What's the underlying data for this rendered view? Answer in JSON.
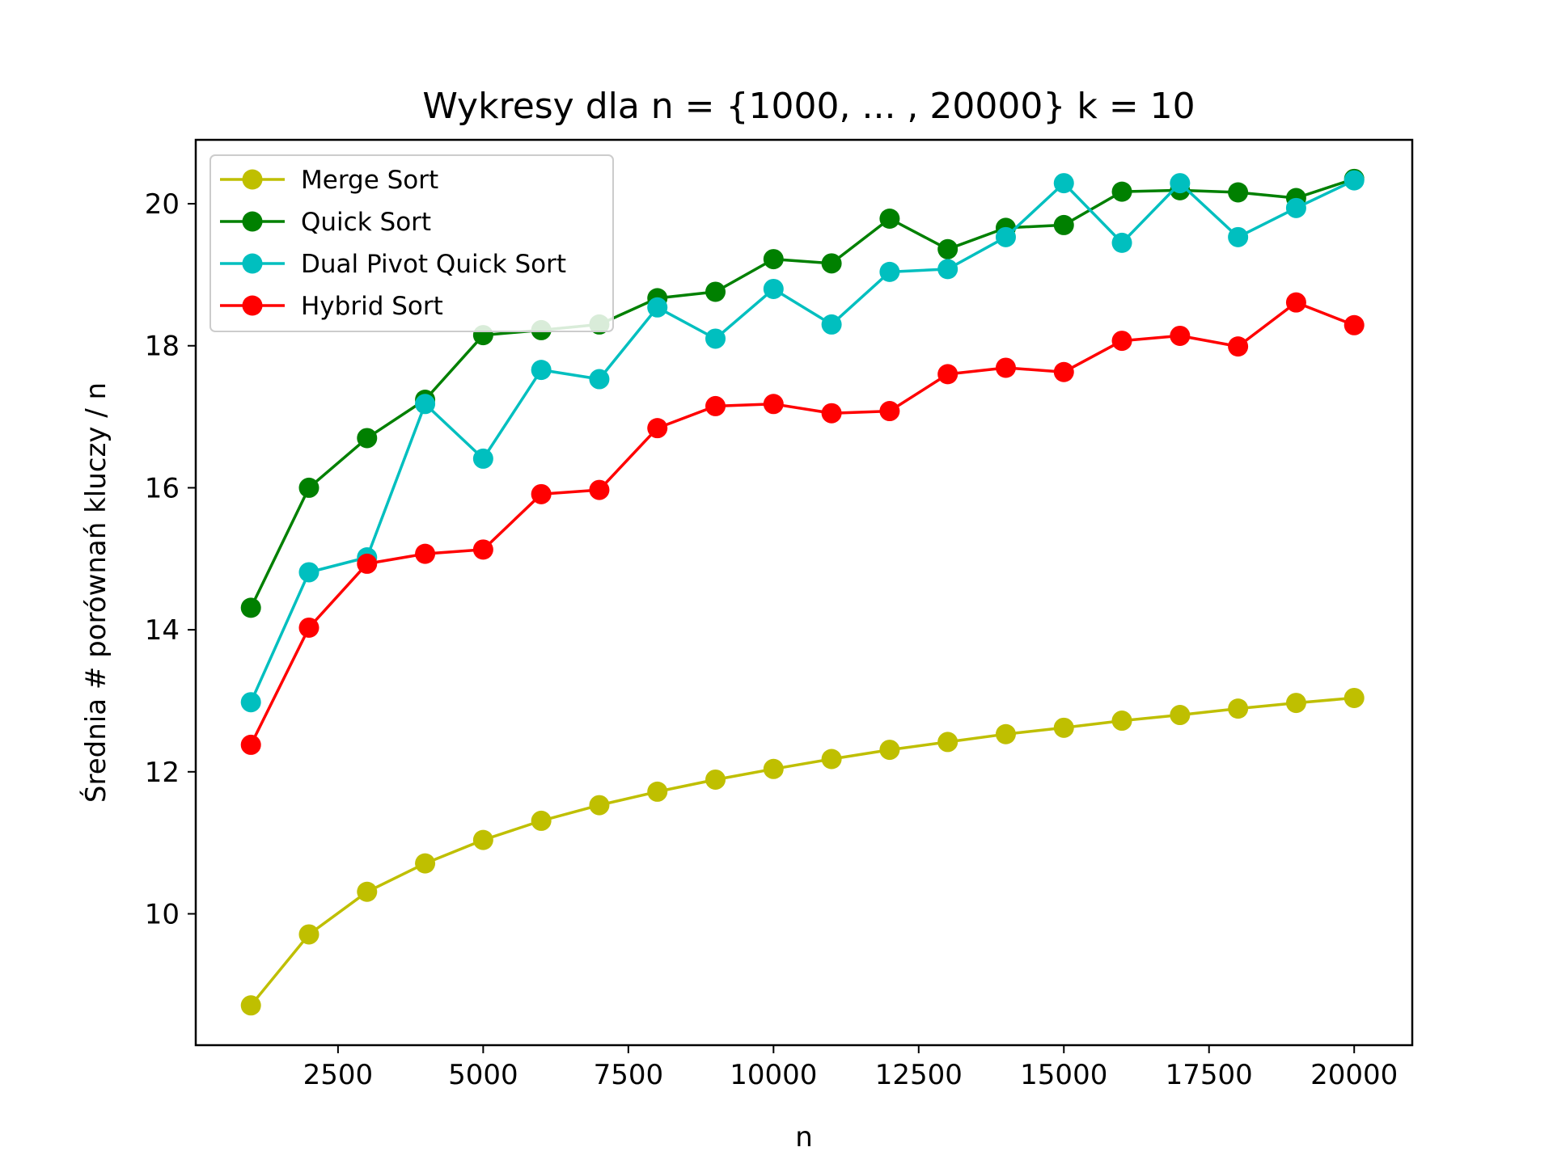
{
  "chart_data": {
    "type": "line",
    "title": "Wykresy dla n = {1000, ... , 20000} k = 10",
    "xlabel": "n",
    "ylabel": "Średnia # porównań kluczy / n",
    "xlim": [
      50,
      21000
    ],
    "ylim": [
      8.15,
      20.9
    ],
    "xticks": [
      2500,
      5000,
      7500,
      10000,
      12500,
      15000,
      17500,
      20000
    ],
    "yticks": [
      10,
      12,
      14,
      16,
      18,
      20
    ],
    "grid": false,
    "legend_position": "top-left",
    "x": [
      1000,
      2000,
      3000,
      4000,
      5000,
      6000,
      7000,
      8000,
      9000,
      10000,
      11000,
      12000,
      13000,
      14000,
      15000,
      16000,
      17000,
      18000,
      19000,
      20000
    ],
    "series": [
      {
        "name": "Merge Sort",
        "color": "#bfbf00",
        "values": [
          8.71,
          9.71,
          10.31,
          10.71,
          11.04,
          11.31,
          11.53,
          11.72,
          11.89,
          12.04,
          12.18,
          12.31,
          12.42,
          12.53,
          12.62,
          12.72,
          12.8,
          12.89,
          12.97,
          13.04
        ]
      },
      {
        "name": "Quick Sort",
        "color": "#008000",
        "values": [
          14.31,
          16.0,
          16.7,
          17.24,
          18.15,
          18.22,
          18.3,
          18.67,
          18.76,
          19.22,
          19.16,
          19.79,
          19.36,
          19.66,
          19.7,
          20.17,
          20.19,
          20.16,
          20.08,
          20.35
        ]
      },
      {
        "name": "Dual Pivot Quick Sort",
        "color": "#00bfbf",
        "values": [
          12.98,
          14.81,
          15.02,
          17.18,
          16.41,
          17.66,
          17.53,
          18.54,
          18.1,
          18.8,
          18.3,
          19.04,
          19.08,
          19.53,
          20.29,
          19.45,
          20.29,
          19.53,
          19.94,
          20.33
        ]
      },
      {
        "name": "Hybrid Sort",
        "color": "#ff0000",
        "values": [
          12.38,
          14.03,
          14.93,
          15.07,
          15.13,
          15.91,
          15.97,
          16.84,
          17.15,
          17.18,
          17.05,
          17.08,
          17.6,
          17.69,
          17.63,
          18.07,
          18.14,
          17.99,
          18.61,
          18.29
        ]
      }
    ]
  }
}
